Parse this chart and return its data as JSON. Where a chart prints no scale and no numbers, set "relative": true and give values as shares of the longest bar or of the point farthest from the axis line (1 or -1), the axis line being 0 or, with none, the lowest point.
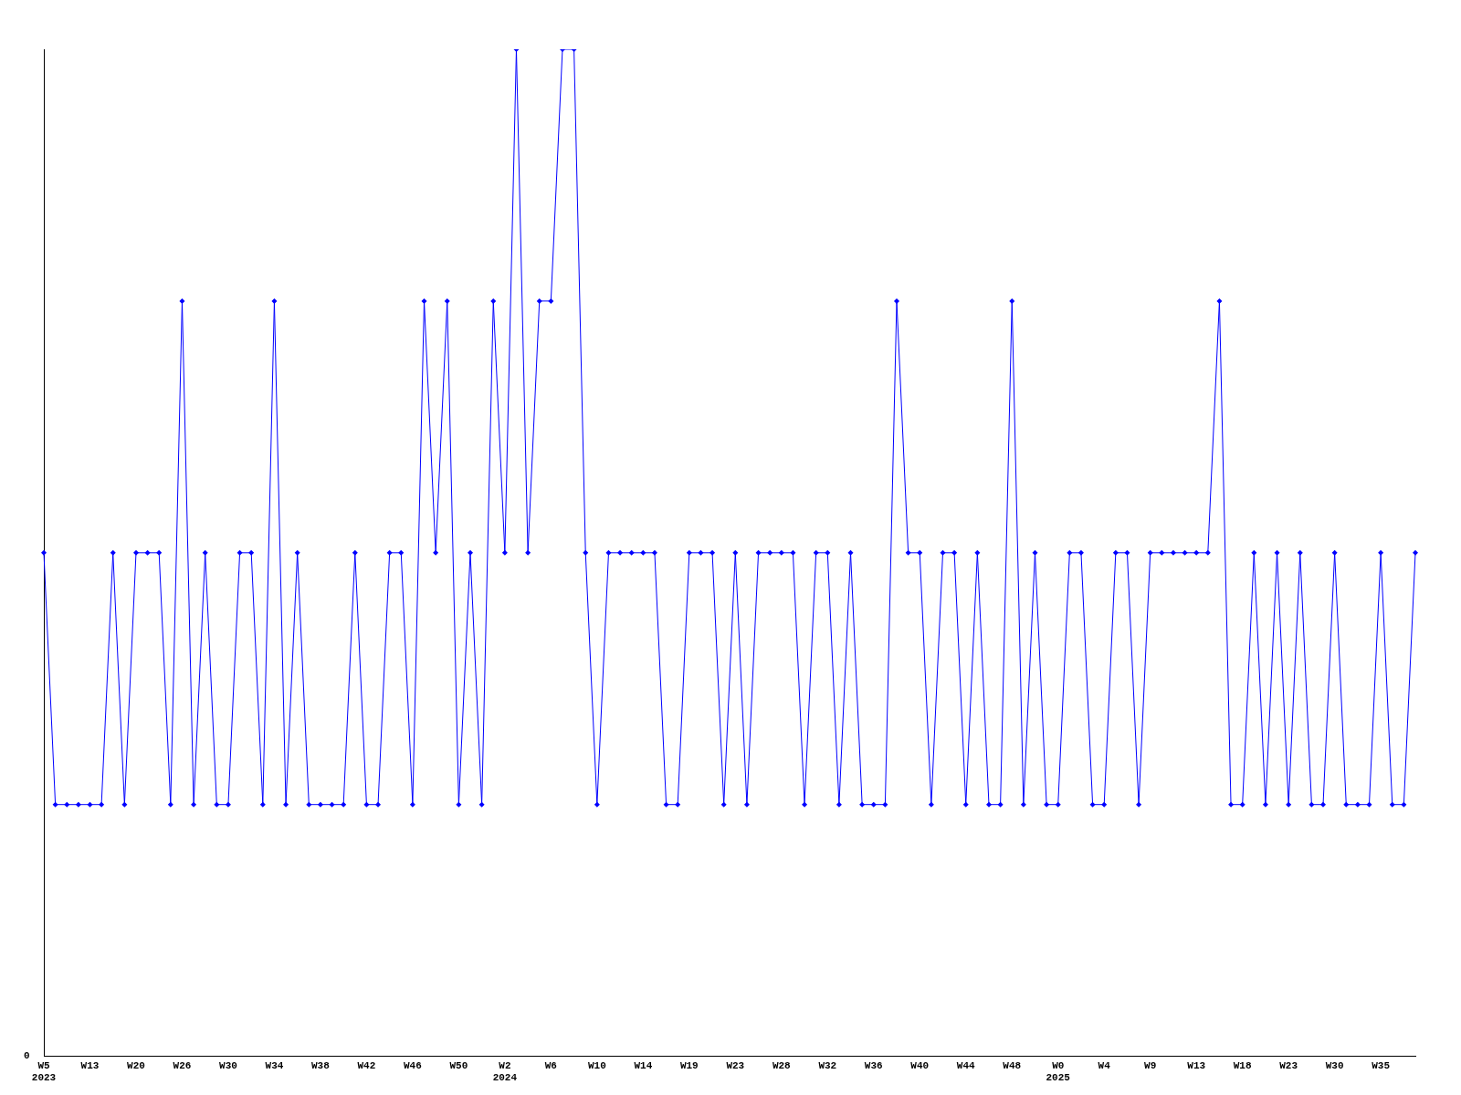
{
  "chart_data": {
    "type": "line",
    "relative": true,
    "annotations": [
      "0"
    ],
    "color": "#0000ff",
    "marker": "diamond",
    "grid": false,
    "legend": false,
    "categories": [
      "W5\n2023",
      null,
      null,
      null,
      "W13",
      null,
      null,
      null,
      "W20",
      null,
      null,
      null,
      "W26",
      null,
      null,
      null,
      "W30",
      null,
      null,
      null,
      "W34",
      null,
      null,
      null,
      "W38",
      null,
      null,
      null,
      "W42",
      null,
      null,
      null,
      "W46",
      null,
      null,
      null,
      "W50",
      null,
      null,
      null,
      "W2\n2024",
      null,
      null,
      null,
      "W6",
      null,
      null,
      null,
      "W10",
      null,
      null,
      null,
      "W14",
      null,
      null,
      null,
      "W19",
      null,
      null,
      null,
      "W23",
      null,
      null,
      null,
      "W28",
      null,
      null,
      null,
      "W32",
      null,
      null,
      null,
      "W36",
      null,
      null,
      null,
      "W40",
      null,
      null,
      null,
      "W44",
      null,
      null,
      null,
      "W48",
      null,
      null,
      null,
      "W0\n2025",
      null,
      null,
      null,
      "W4",
      null,
      null,
      null,
      "W9",
      null,
      null,
      null,
      "W13",
      null,
      null,
      null,
      "W18",
      null,
      null,
      null,
      "W23",
      null,
      null,
      null,
      "W30",
      null,
      null,
      null,
      "W35",
      null,
      null,
      null
    ],
    "values": [
      0.5,
      0.25,
      0.25,
      0.25,
      0.25,
      0.25,
      0.5,
      0.25,
      0.5,
      0.5,
      0.5,
      0.25,
      0.75,
      0.25,
      0.5,
      0.25,
      0.25,
      0.5,
      0.5,
      0.25,
      0.75,
      0.25,
      0.5,
      0.25,
      0.25,
      0.25,
      0.25,
      0.5,
      0.25,
      0.25,
      0.5,
      0.5,
      0.25,
      0.75,
      0.5,
      0.75,
      0.25,
      0.5,
      0.25,
      0.75,
      0.5,
      1,
      0.5,
      0.75,
      0.75,
      1,
      1,
      0.5,
      0.25,
      0.5,
      0.5,
      0.5,
      0.5,
      0.5,
      0.25,
      0.25,
      0.5,
      0.5,
      0.5,
      0.25,
      0.5,
      0.25,
      0.5,
      0.5,
      0.5,
      0.5,
      0.25,
      0.5,
      0.5,
      0.25,
      0.5,
      0.25,
      0.25,
      0.25,
      0.75,
      0.5,
      0.5,
      0.25,
      0.5,
      0.5,
      0.25,
      0.5,
      0.25,
      0.25,
      0.75,
      0.25,
      0.5,
      0.25,
      0.25,
      0.5,
      0.5,
      0.25,
      0.25,
      0.5,
      0.5,
      0.25,
      0.5,
      0.5,
      0.5,
      0.5,
      0.5,
      0.5,
      0.75,
      0.25,
      0.25,
      0.5,
      0.25,
      0.5,
      0.25,
      0.5,
      0.25,
      0.25,
      0.5,
      0.25,
      0.25,
      0.25,
      0.5,
      0.25,
      0.25,
      0.5
    ]
  }
}
